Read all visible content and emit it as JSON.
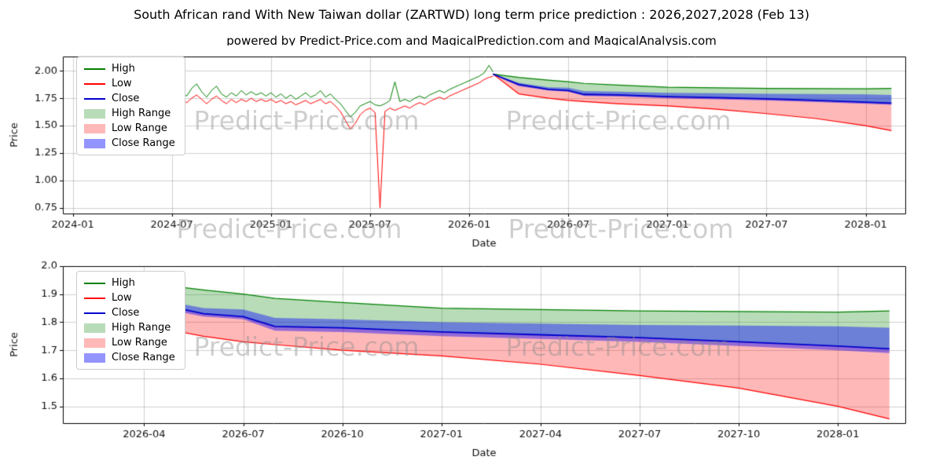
{
  "title": "South African rand With New Taiwan dollar (ZARTWD) long term price prediction : 2026,2027,2028 (Feb 13)",
  "subtitle": "powered by Predict-Price.com and MagicalPrediction.com and MagicalAnalysis.com",
  "watermark": {
    "text": "Predict-Price.com"
  },
  "legend": [
    {
      "label": "High",
      "type": "line",
      "color": "#008000"
    },
    {
      "label": "Low",
      "type": "line",
      "color": "#ff0000"
    },
    {
      "label": "Close",
      "type": "line",
      "color": "#0000cd"
    },
    {
      "label": "High Range",
      "type": "band",
      "color": "rgba(0,128,0,0.28)"
    },
    {
      "label": "Low Range",
      "type": "band",
      "color": "rgba(255,0,0,0.28)"
    },
    {
      "label": "Close Range",
      "type": "band",
      "color": "rgba(0,0,255,0.42)"
    }
  ],
  "chart_data": [
    {
      "type": "line",
      "title": "",
      "xlabel": "Date",
      "ylabel": "Price",
      "xlim": [
        2023.95,
        2028.2
      ],
      "ylim": [
        0.7,
        2.13
      ],
      "grid": true,
      "legend_position": "upper left",
      "xticks": [
        {
          "v": 2024.0,
          "label": "2024-01"
        },
        {
          "v": 2024.5,
          "label": "2024-07"
        },
        {
          "v": 2025.0,
          "label": "2025-01"
        },
        {
          "v": 2025.5,
          "label": "2025-07"
        },
        {
          "v": 2026.0,
          "label": "2026-01"
        },
        {
          "v": 2026.5,
          "label": "2026-07"
        },
        {
          "v": 2027.0,
          "label": "2027-01"
        },
        {
          "v": 2027.5,
          "label": "2027-07"
        },
        {
          "v": 2028.0,
          "label": "2028-01"
        }
      ],
      "yticks": [
        {
          "v": 0.75,
          "label": "0.75"
        },
        {
          "v": 1.0,
          "label": "1.00"
        },
        {
          "v": 1.25,
          "label": "1.25"
        },
        {
          "v": 1.5,
          "label": "1.50"
        },
        {
          "v": 1.75,
          "label": "1.75"
        },
        {
          "v": 2.0,
          "label": "2.00"
        }
      ],
      "bands": [
        {
          "name": "high-range",
          "color": "rgba(0,128,0,0.28)",
          "x": [
            2026.12,
            2026.25,
            2026.4,
            2026.5,
            2026.58,
            2026.75,
            2027.0,
            2027.25,
            2027.5,
            2027.75,
            2028.0,
            2028.13
          ],
          "upper": [
            1.97,
            1.94,
            1.915,
            1.9,
            1.885,
            1.87,
            1.85,
            1.845,
            1.84,
            1.838,
            1.836,
            1.84
          ],
          "lower": [
            1.97,
            1.875,
            1.83,
            1.82,
            1.785,
            1.78,
            1.765,
            1.755,
            1.745,
            1.73,
            1.715,
            1.705
          ]
        },
        {
          "name": "low-range",
          "color": "rgba(255,0,0,0.28)",
          "x": [
            2026.12,
            2026.25,
            2026.4,
            2026.5,
            2026.58,
            2026.75,
            2027.0,
            2027.25,
            2027.5,
            2027.75,
            2028.0,
            2028.13
          ],
          "upper": [
            1.97,
            1.875,
            1.83,
            1.82,
            1.785,
            1.78,
            1.765,
            1.755,
            1.745,
            1.73,
            1.715,
            1.705
          ],
          "lower": [
            1.97,
            1.79,
            1.75,
            1.73,
            1.72,
            1.7,
            1.68,
            1.65,
            1.61,
            1.565,
            1.5,
            1.455
          ]
        },
        {
          "name": "close-range",
          "color": "rgba(0,0,255,0.42)",
          "x": [
            2026.12,
            2026.25,
            2026.4,
            2026.5,
            2026.58,
            2026.75,
            2027.0,
            2027.25,
            2027.5,
            2027.75,
            2028.0,
            2028.13
          ],
          "upper": [
            1.97,
            1.89,
            1.85,
            1.845,
            1.815,
            1.81,
            1.8,
            1.795,
            1.79,
            1.788,
            1.785,
            1.78
          ],
          "lower": [
            1.97,
            1.86,
            1.82,
            1.81,
            1.77,
            1.765,
            1.75,
            1.74,
            1.73,
            1.715,
            1.7,
            1.69
          ]
        }
      ],
      "lines": [
        {
          "name": "high-historical",
          "color": "#008000",
          "width": 1,
          "x": [
            2024.25,
            2024.275,
            2024.3,
            2024.325,
            2024.35,
            2024.375,
            2024.4,
            2024.425,
            2024.45,
            2024.475,
            2024.5,
            2024.525,
            2024.55,
            2024.575,
            2024.6,
            2024.625,
            2024.65,
            2024.675,
            2024.7,
            2024.725,
            2024.75,
            2024.775,
            2024.8,
            2024.825,
            2024.85,
            2024.875,
            2024.9,
            2024.925,
            2024.95,
            2024.975,
            2025.0,
            2025.025,
            2025.05,
            2025.075,
            2025.1,
            2025.125,
            2025.15,
            2025.175,
            2025.2,
            2025.225,
            2025.25,
            2025.275,
            2025.3,
            2025.325,
            2025.35,
            2025.375,
            2025.4,
            2025.425,
            2025.45,
            2025.475,
            2025.5,
            2025.525,
            2025.55,
            2025.575,
            2025.6,
            2025.625,
            2025.65,
            2025.675,
            2025.7,
            2025.725,
            2025.75,
            2025.775,
            2025.8,
            2025.825,
            2025.85,
            2025.875,
            2025.9,
            2025.925,
            2025.95,
            2025.975,
            2026.0,
            2026.025,
            2026.05,
            2026.075,
            2026.1,
            2026.12
          ],
          "y": [
            1.76,
            1.8,
            1.82,
            1.79,
            1.9,
            1.81,
            1.78,
            1.84,
            1.8,
            1.86,
            1.82,
            1.86,
            1.8,
            1.77,
            1.84,
            1.88,
            1.81,
            1.76,
            1.82,
            1.86,
            1.79,
            1.76,
            1.8,
            1.77,
            1.82,
            1.78,
            1.81,
            1.78,
            1.8,
            1.77,
            1.8,
            1.76,
            1.79,
            1.75,
            1.78,
            1.74,
            1.77,
            1.8,
            1.76,
            1.78,
            1.82,
            1.76,
            1.79,
            1.74,
            1.7,
            1.64,
            1.58,
            1.62,
            1.68,
            1.7,
            1.72,
            1.69,
            1.68,
            1.7,
            1.73,
            1.9,
            1.72,
            1.74,
            1.72,
            1.75,
            1.77,
            1.75,
            1.78,
            1.8,
            1.82,
            1.8,
            1.83,
            1.85,
            1.87,
            1.89,
            1.91,
            1.93,
            1.95,
            1.98,
            2.05,
            1.99
          ]
        },
        {
          "name": "low-historical",
          "color": "#ff0000",
          "width": 1,
          "x": [
            2024.25,
            2024.275,
            2024.3,
            2024.325,
            2024.35,
            2024.375,
            2024.4,
            2024.425,
            2024.45,
            2024.475,
            2024.5,
            2024.525,
            2024.55,
            2024.575,
            2024.6,
            2024.625,
            2024.65,
            2024.675,
            2024.7,
            2024.725,
            2024.75,
            2024.775,
            2024.8,
            2024.825,
            2024.85,
            2024.875,
            2024.9,
            2024.925,
            2024.95,
            2024.975,
            2025.0,
            2025.025,
            2025.05,
            2025.075,
            2025.1,
            2025.125,
            2025.15,
            2025.175,
            2025.2,
            2025.225,
            2025.25,
            2025.275,
            2025.3,
            2025.325,
            2025.35,
            2025.375,
            2025.4,
            2025.425,
            2025.45,
            2025.475,
            2025.5,
            2025.525,
            2025.55,
            2025.575,
            2025.6,
            2025.625,
            2025.65,
            2025.675,
            2025.7,
            2025.725,
            2025.75,
            2025.775,
            2025.8,
            2025.825,
            2025.85,
            2025.875,
            2025.9,
            2025.925,
            2025.95,
            2025.975,
            2026.0,
            2026.025,
            2026.05,
            2026.075,
            2026.1,
            2026.12
          ],
          "y": [
            1.7,
            1.74,
            1.76,
            1.73,
            1.77,
            1.75,
            1.72,
            1.76,
            1.74,
            1.77,
            1.75,
            1.78,
            1.74,
            1.71,
            1.75,
            1.78,
            1.74,
            1.7,
            1.74,
            1.77,
            1.73,
            1.7,
            1.74,
            1.71,
            1.74,
            1.72,
            1.75,
            1.72,
            1.74,
            1.72,
            1.74,
            1.71,
            1.73,
            1.7,
            1.72,
            1.69,
            1.71,
            1.73,
            1.7,
            1.72,
            1.74,
            1.7,
            1.72,
            1.68,
            1.63,
            1.55,
            1.47,
            1.52,
            1.6,
            1.64,
            1.66,
            1.62,
            0.75,
            1.63,
            1.66,
            1.64,
            1.66,
            1.68,
            1.66,
            1.69,
            1.71,
            1.69,
            1.72,
            1.74,
            1.76,
            1.74,
            1.77,
            1.79,
            1.81,
            1.83,
            1.85,
            1.87,
            1.89,
            1.92,
            1.94,
            1.95
          ]
        },
        {
          "name": "high-forecast",
          "color": "#008000",
          "width": 1.2,
          "x": [
            2026.12,
            2026.25,
            2026.4,
            2026.5,
            2026.58,
            2026.75,
            2027.0,
            2027.25,
            2027.5,
            2027.75,
            2028.0,
            2028.13
          ],
          "y": [
            1.97,
            1.94,
            1.915,
            1.9,
            1.885,
            1.87,
            1.85,
            1.845,
            1.84,
            1.838,
            1.836,
            1.84
          ]
        },
        {
          "name": "low-forecast",
          "color": "#ff0000",
          "width": 1.2,
          "x": [
            2026.12,
            2026.25,
            2026.4,
            2026.5,
            2026.58,
            2026.75,
            2027.0,
            2027.25,
            2027.5,
            2027.75,
            2028.0,
            2028.13
          ],
          "y": [
            1.97,
            1.79,
            1.75,
            1.73,
            1.72,
            1.7,
            1.68,
            1.65,
            1.61,
            1.565,
            1.5,
            1.455
          ]
        },
        {
          "name": "close-forecast",
          "color": "#0000cd",
          "width": 1.8,
          "x": [
            2026.12,
            2026.25,
            2026.4,
            2026.5,
            2026.58,
            2026.75,
            2027.0,
            2027.25,
            2027.5,
            2027.75,
            2028.0,
            2028.13
          ],
          "y": [
            1.97,
            1.875,
            1.83,
            1.82,
            1.785,
            1.78,
            1.765,
            1.755,
            1.745,
            1.73,
            1.715,
            1.705
          ]
        }
      ]
    },
    {
      "type": "line",
      "title": "",
      "xlabel": "Date",
      "ylabel": "Price",
      "xlim": [
        2026.045,
        2028.17
      ],
      "ylim": [
        1.44,
        2.0
      ],
      "grid": true,
      "legend_position": "upper left",
      "xticks": [
        {
          "v": 2026.25,
          "label": "2026-04"
        },
        {
          "v": 2026.5,
          "label": "2026-07"
        },
        {
          "v": 2026.75,
          "label": "2026-10"
        },
        {
          "v": 2027.0,
          "label": "2027-01"
        },
        {
          "v": 2027.25,
          "label": "2027-04"
        },
        {
          "v": 2027.5,
          "label": "2027-07"
        },
        {
          "v": 2027.75,
          "label": "2027-10"
        },
        {
          "v": 2028.0,
          "label": "2028-01"
        }
      ],
      "yticks": [
        {
          "v": 1.5,
          "label": "1.5"
        },
        {
          "v": 1.6,
          "label": "1.6"
        },
        {
          "v": 1.7,
          "label": "1.7"
        },
        {
          "v": 1.8,
          "label": "1.8"
        },
        {
          "v": 1.9,
          "label": "1.9"
        },
        {
          "v": 2.0,
          "label": "2.0"
        }
      ],
      "bands": [
        {
          "name": "high-range",
          "color": "rgba(0,128,0,0.28)",
          "x": [
            2026.12,
            2026.25,
            2026.4,
            2026.5,
            2026.58,
            2026.75,
            2027.0,
            2027.25,
            2027.5,
            2027.75,
            2028.0,
            2028.13
          ],
          "upper": [
            1.97,
            1.94,
            1.915,
            1.9,
            1.885,
            1.87,
            1.85,
            1.845,
            1.84,
            1.838,
            1.836,
            1.84
          ],
          "lower": [
            1.97,
            1.875,
            1.83,
            1.82,
            1.785,
            1.78,
            1.765,
            1.755,
            1.745,
            1.73,
            1.715,
            1.705
          ]
        },
        {
          "name": "low-range",
          "color": "rgba(255,0,0,0.28)",
          "x": [
            2026.12,
            2026.25,
            2026.4,
            2026.5,
            2026.58,
            2026.75,
            2027.0,
            2027.25,
            2027.5,
            2027.75,
            2028.0,
            2028.13
          ],
          "upper": [
            1.97,
            1.875,
            1.83,
            1.82,
            1.785,
            1.78,
            1.765,
            1.755,
            1.745,
            1.73,
            1.715,
            1.705
          ],
          "lower": [
            1.97,
            1.79,
            1.75,
            1.73,
            1.72,
            1.7,
            1.68,
            1.65,
            1.61,
            1.565,
            1.5,
            1.455
          ]
        },
        {
          "name": "close-range",
          "color": "rgba(0,0,255,0.42)",
          "x": [
            2026.12,
            2026.25,
            2026.4,
            2026.5,
            2026.58,
            2026.75,
            2027.0,
            2027.25,
            2027.5,
            2027.75,
            2028.0,
            2028.13
          ],
          "upper": [
            1.97,
            1.89,
            1.85,
            1.845,
            1.815,
            1.81,
            1.8,
            1.795,
            1.79,
            1.788,
            1.785,
            1.78
          ],
          "lower": [
            1.97,
            1.86,
            1.82,
            1.81,
            1.77,
            1.765,
            1.75,
            1.74,
            1.73,
            1.715,
            1.7,
            1.69
          ]
        }
      ],
      "lines": [
        {
          "name": "high-forecast",
          "color": "#008000",
          "width": 1.2,
          "x": [
            2026.12,
            2026.25,
            2026.4,
            2026.5,
            2026.58,
            2026.75,
            2027.0,
            2027.25,
            2027.5,
            2027.75,
            2028.0,
            2028.13
          ],
          "y": [
            1.97,
            1.94,
            1.915,
            1.9,
            1.885,
            1.87,
            1.85,
            1.845,
            1.84,
            1.838,
            1.836,
            1.84
          ]
        },
        {
          "name": "low-forecast",
          "color": "#ff0000",
          "width": 1.2,
          "x": [
            2026.12,
            2026.25,
            2026.4,
            2026.5,
            2026.58,
            2026.75,
            2027.0,
            2027.25,
            2027.5,
            2027.75,
            2028.0,
            2028.13
          ],
          "y": [
            1.97,
            1.79,
            1.75,
            1.73,
            1.72,
            1.7,
            1.68,
            1.65,
            1.61,
            1.565,
            1.5,
            1.455
          ]
        },
        {
          "name": "close-forecast",
          "color": "#0000cd",
          "width": 1.8,
          "x": [
            2026.12,
            2026.25,
            2026.4,
            2026.5,
            2026.58,
            2026.75,
            2027.0,
            2027.25,
            2027.5,
            2027.75,
            2028.0,
            2028.13
          ],
          "y": [
            1.97,
            1.875,
            1.83,
            1.82,
            1.785,
            1.78,
            1.765,
            1.755,
            1.745,
            1.73,
            1.715,
            1.705
          ]
        }
      ]
    }
  ]
}
